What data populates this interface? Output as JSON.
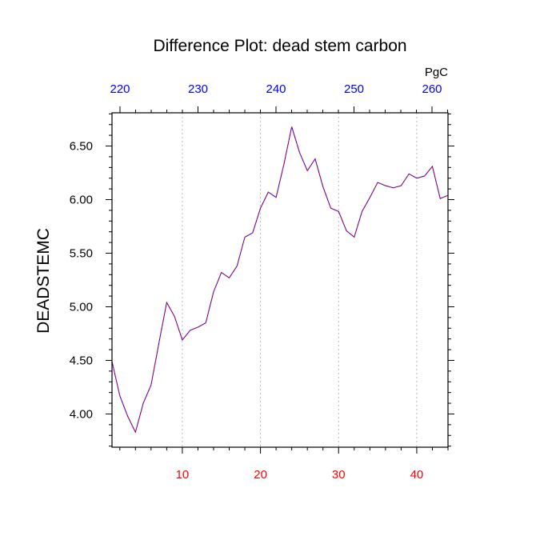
{
  "chart_data": {
    "type": "line",
    "title": "Difference Plot: dead stem carbon",
    "ylabel": "DEADSTEMC",
    "top_axis_unit": "PgC",
    "xlim": [
      1,
      44
    ],
    "ylim": [
      3.69,
      6.81
    ],
    "grid": "vertical-dashed",
    "colors": {
      "bottom_axis": "#ff0000",
      "top_axis": "#0000ff",
      "line_primary": "#0000ff",
      "line_secondary": "#ff0000",
      "grid": "#aaaaaa"
    },
    "x_ticks": [
      10,
      20,
      30,
      40
    ],
    "x_tick_labels": [
      "10",
      "20",
      "30",
      "40"
    ],
    "top_ticks": [
      220,
      230,
      240,
      250,
      260
    ],
    "top_tick_labels": [
      "220",
      "230",
      "240",
      "250",
      "260"
    ],
    "top_axis_map": {
      "x_at_220": 0.0,
      "x_per_unit": 0.9983
    },
    "y_ticks": [
      4.0,
      4.5,
      5.0,
      5.5,
      6.0,
      6.5
    ],
    "y_tick_labels": [
      "4.00",
      "4.50",
      "5.00",
      "5.50",
      "6.00",
      "6.50"
    ],
    "series": [
      {
        "x": [
          1,
          2,
          3,
          4,
          5,
          6,
          7,
          8,
          9,
          10,
          11,
          12,
          13,
          14,
          15,
          16,
          17,
          18,
          19,
          20,
          21,
          22,
          23,
          24,
          25,
          26,
          27,
          28,
          29,
          30,
          31,
          32,
          33,
          34,
          35,
          36,
          37,
          38,
          39,
          40,
          41,
          42,
          43,
          44
        ],
        "values": [
          4.49,
          4.17,
          3.98,
          3.83,
          4.1,
          4.27,
          4.66,
          5.04,
          4.91,
          4.69,
          4.78,
          4.81,
          4.85,
          5.14,
          5.32,
          5.27,
          5.38,
          5.65,
          5.69,
          5.92,
          6.07,
          6.02,
          6.33,
          6.68,
          6.44,
          6.27,
          6.38,
          6.12,
          5.92,
          5.89,
          5.71,
          5.65,
          5.89,
          6.02,
          6.16,
          6.13,
          6.11,
          6.13,
          6.24,
          6.2,
          6.22,
          6.31,
          6.01,
          6.04
        ]
      }
    ]
  }
}
